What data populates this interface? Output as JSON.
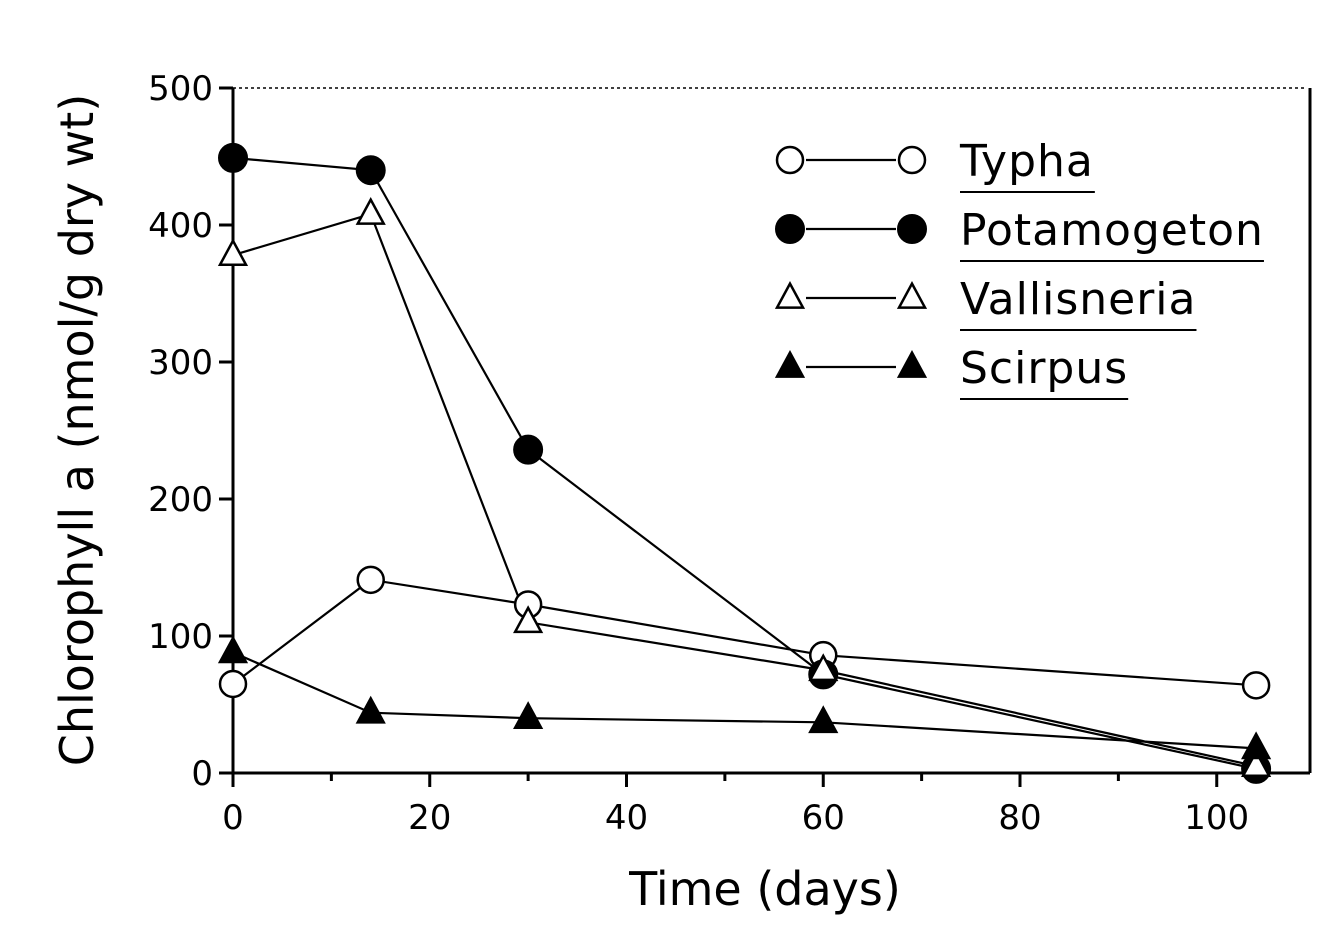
{
  "chart_data": {
    "type": "line",
    "xlabel": "Time (days)",
    "ylabel": "Chlorophyll a (nmol/g dry wt)",
    "xlim": [
      0,
      110
    ],
    "ylim": [
      0,
      500
    ],
    "xticks": [
      0,
      20,
      40,
      60,
      80,
      100
    ],
    "yticks": [
      0,
      100,
      200,
      300,
      400,
      500
    ],
    "x": [
      0,
      14,
      30,
      60,
      104
    ],
    "legend_position": "top-right",
    "grid": false,
    "series": [
      {
        "name": "Typha",
        "marker": "circle-open",
        "values": [
          65,
          141,
          123,
          86,
          64
        ]
      },
      {
        "name": "Potamogeton",
        "marker": "circle-filled",
        "values": [
          449,
          440,
          236,
          72,
          3
        ]
      },
      {
        "name": "Vallisneria",
        "marker": "triangle-open",
        "values": [
          378,
          408,
          110,
          75,
          5
        ]
      },
      {
        "name": "Scirpus",
        "marker": "triangle-filled",
        "values": [
          88,
          44,
          40,
          37,
          18
        ]
      }
    ]
  }
}
